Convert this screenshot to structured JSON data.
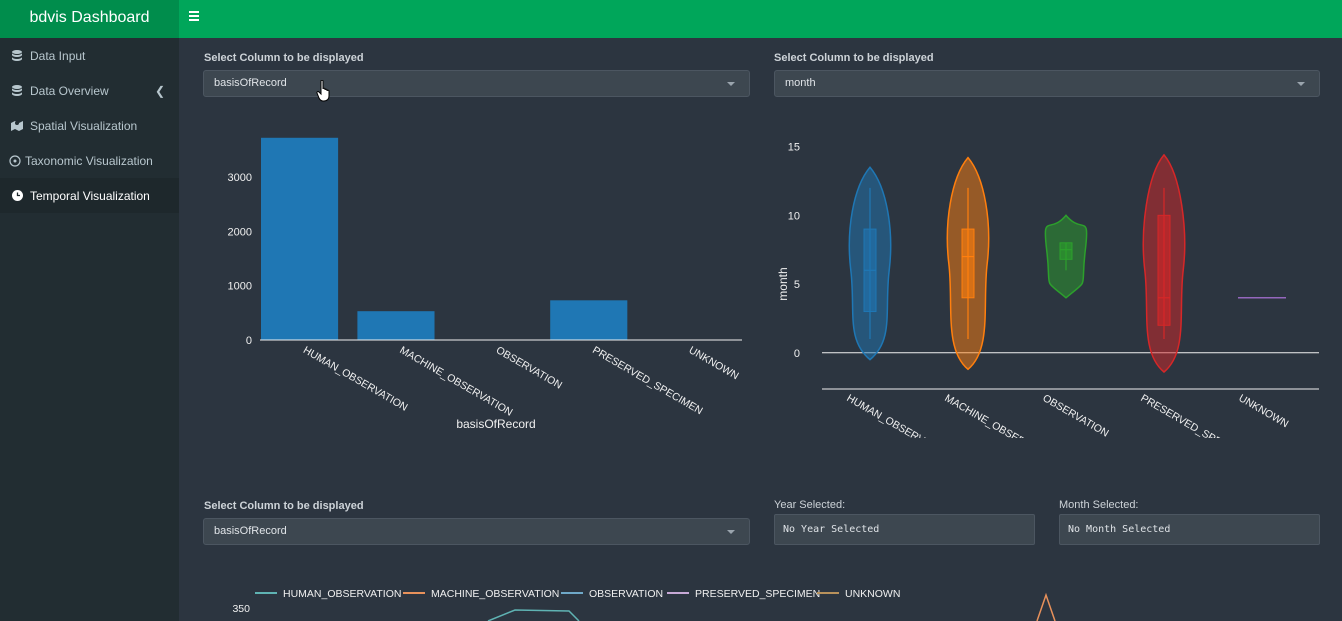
{
  "app": {
    "title": "bdvis Dashboard"
  },
  "sidebar": {
    "items": [
      {
        "label": "Data Input",
        "icon": "database-icon",
        "active": false
      },
      {
        "label": "Data Overview",
        "icon": "database-icon",
        "active": false,
        "expandable": true
      },
      {
        "label": "Spatial Visualization",
        "icon": "map-icon",
        "active": false
      },
      {
        "label": "Taxonomic Visualization",
        "icon": "sitemap-icon",
        "active": false
      },
      {
        "label": "Temporal Visualization",
        "icon": "clock-icon",
        "active": true
      }
    ]
  },
  "panel1": {
    "label": "Select Column to be displayed",
    "selected": "basisOfRecord"
  },
  "panel2": {
    "label": "Select Column to be displayed",
    "selected": "month"
  },
  "panel3": {
    "label": "Select Column to be displayed",
    "selected": "basisOfRecord"
  },
  "year": {
    "label": "Year Selected:",
    "value": "No Year Selected"
  },
  "month": {
    "label": "Month Selected:",
    "value": "No Month Selected"
  },
  "colors": {
    "header": "#00a65a",
    "brand": "#008d4c",
    "bar": "#1f77b4",
    "violin": [
      "#1f77b4",
      "#ff7f0e",
      "#2ca02c",
      "#d62728",
      "#9467bd"
    ],
    "lines": [
      "#5fb3b3",
      "#e8915b",
      "#6fa8c8",
      "#c7a9d6",
      "#b8915b"
    ]
  },
  "chart_data": [
    {
      "type": "bar",
      "title": "",
      "xlabel": "basisOfRecord",
      "ylabel": "",
      "categories": [
        "HUMAN_OBSERVATION",
        "MACHINE_OBSERVATION",
        "OBSERVATION",
        "PRESERVED_SPECIMEN",
        "UNKNOWN"
      ],
      "values": [
        3720,
        530,
        0,
        730,
        0
      ],
      "yticks": [
        0,
        1000,
        2000,
        3000
      ],
      "ylim": [
        0,
        3900
      ]
    },
    {
      "type": "violin",
      "title": "",
      "xlabel": "",
      "ylabel": "month",
      "categories": [
        "HUMAN_OBSERVATION",
        "MACHINE_OBSERVATION",
        "OBSERVATION",
        "PRESERVED_SPECIMEN",
        "UNKNOWN"
      ],
      "yticks": [
        0,
        5,
        10,
        15
      ],
      "ylim": [
        -2.2,
        16.5
      ],
      "series": [
        {
          "name": "HUMAN_OBSERVATION",
          "min": 1,
          "q1": 3,
          "median": 6,
          "q3": 9,
          "max": 12,
          "kde_min": -0.5,
          "kde_max": 13.5
        },
        {
          "name": "MACHINE_OBSERVATION",
          "min": 1,
          "q1": 4,
          "median": 7,
          "q3": 9,
          "max": 12,
          "kde_min": -1.2,
          "kde_max": 14.2
        },
        {
          "name": "OBSERVATION",
          "min": 6,
          "q1": 6.8,
          "median": 7.5,
          "q3": 8,
          "max": 8,
          "kde_min": 4,
          "kde_max": 10
        },
        {
          "name": "PRESERVED_SPECIMEN",
          "min": 1,
          "q1": 2,
          "median": 4,
          "q3": 10,
          "max": 12,
          "kde_min": -1.4,
          "kde_max": 14.4
        },
        {
          "name": "UNKNOWN",
          "min": 4,
          "q1": 4,
          "median": 4,
          "q3": 4,
          "max": 4,
          "kde_min": 4,
          "kde_max": 4
        }
      ]
    },
    {
      "type": "line",
      "title": "",
      "legend": [
        "HUMAN_OBSERVATION",
        "MACHINE_OBSERVATION",
        "OBSERVATION",
        "PRESERVED_SPECIMEN",
        "UNKNOWN"
      ],
      "yticks": [
        350
      ],
      "series": [
        {
          "name": "HUMAN_OBSERVATION",
          "values": [
            360,
            360
          ]
        },
        {
          "name": "UNKNOWN",
          "values": [
            370
          ]
        }
      ]
    }
  ]
}
